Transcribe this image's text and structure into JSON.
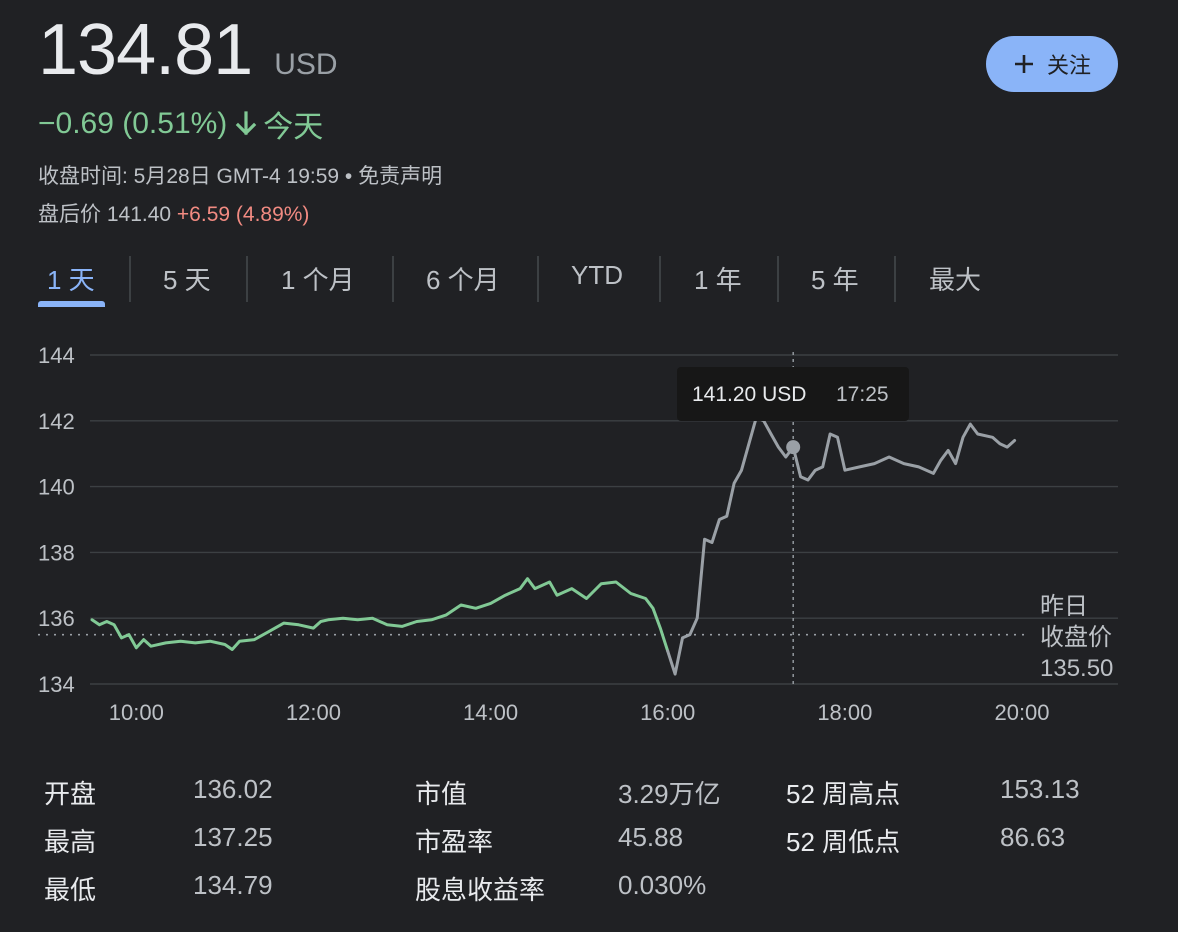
{
  "quote": {
    "price": "134.81",
    "currency": "USD",
    "change": "−0.69 (0.51%)",
    "change_period": "今天",
    "close_time_text": "收盘时间: 5月28日 GMT-4 19:59 • 免责声明",
    "after_hours_label": "盘后价",
    "after_hours_price": "141.40",
    "after_hours_change": "+6.59 (4.89%)"
  },
  "follow_button": {
    "label": "关注",
    "icon": "plus-icon"
  },
  "tabs": [
    "1 天",
    "5 天",
    "1 个月",
    "6 个月",
    "YTD",
    "1 年",
    "5 年",
    "最大"
  ],
  "active_tab": 0,
  "colors": {
    "background": "#202124",
    "regular_line": "#81c995",
    "after_hours_line": "#9aa0a6",
    "accent": "#8ab4f8",
    "negative": "#81c995",
    "positive": "#f28b82"
  },
  "tooltip": {
    "price": "141.20 USD",
    "time": "17:25"
  },
  "prev_close": {
    "label_line1": "昨日",
    "label_line2": "收盘价",
    "value": "135.50"
  },
  "chart_data": {
    "type": "line",
    "title": "",
    "xlabel": "",
    "ylabel": "",
    "ylim": [
      134,
      144
    ],
    "y_ticks": [
      "144",
      "142",
      "140",
      "138",
      "136",
      "134"
    ],
    "x_ticks": [
      "10:00",
      "12:00",
      "14:00",
      "16:00",
      "18:00",
      "20:00"
    ],
    "reference_line": 135.5,
    "hover_point": {
      "time": "17:25",
      "value": 141.2
    },
    "series": [
      {
        "segment": "regular",
        "points": [
          [
            "09:30",
            135.95
          ],
          [
            "09:35",
            135.8
          ],
          [
            "09:40",
            135.9
          ],
          [
            "09:45",
            135.8
          ],
          [
            "09:50",
            135.4
          ],
          [
            "09:55",
            135.5
          ],
          [
            "10:00",
            135.1
          ],
          [
            "10:05",
            135.35
          ],
          [
            "10:10",
            135.15
          ],
          [
            "10:20",
            135.25
          ],
          [
            "10:30",
            135.3
          ],
          [
            "10:40",
            135.25
          ],
          [
            "10:50",
            135.3
          ],
          [
            "11:00",
            135.2
          ],
          [
            "11:05",
            135.05
          ],
          [
            "11:10",
            135.3
          ],
          [
            "11:20",
            135.35
          ],
          [
            "11:30",
            135.6
          ],
          [
            "11:40",
            135.85
          ],
          [
            "11:50",
            135.8
          ],
          [
            "12:00",
            135.7
          ],
          [
            "12:05",
            135.9
          ],
          [
            "12:10",
            135.95
          ],
          [
            "12:20",
            136.0
          ],
          [
            "12:30",
            135.95
          ],
          [
            "12:40",
            136.0
          ],
          [
            "12:50",
            135.8
          ],
          [
            "13:00",
            135.75
          ],
          [
            "13:10",
            135.9
          ],
          [
            "13:20",
            135.95
          ],
          [
            "13:30",
            136.1
          ],
          [
            "13:40",
            136.4
          ],
          [
            "13:50",
            136.3
          ],
          [
            "14:00",
            136.45
          ],
          [
            "14:10",
            136.7
          ],
          [
            "14:20",
            136.9
          ],
          [
            "14:25",
            137.2
          ],
          [
            "14:30",
            136.9
          ],
          [
            "14:40",
            137.1
          ],
          [
            "14:45",
            136.7
          ],
          [
            "14:55",
            136.9
          ],
          [
            "15:05",
            136.6
          ],
          [
            "15:15",
            137.05
          ],
          [
            "15:25",
            137.1
          ],
          [
            "15:35",
            136.75
          ],
          [
            "15:45",
            136.6
          ],
          [
            "15:50",
            136.3
          ],
          [
            "15:55",
            135.7
          ],
          [
            "16:00",
            135.0
          ]
        ]
      },
      {
        "segment": "after_hours",
        "points": [
          [
            "16:00",
            135.0
          ],
          [
            "16:05",
            134.3
          ],
          [
            "16:10",
            135.4
          ],
          [
            "16:15",
            135.5
          ],
          [
            "16:20",
            136.0
          ],
          [
            "16:25",
            138.4
          ],
          [
            "16:30",
            138.3
          ],
          [
            "16:35",
            139.0
          ],
          [
            "16:40",
            139.1
          ],
          [
            "16:45",
            140.1
          ],
          [
            "16:50",
            140.5
          ],
          [
            "16:55",
            141.3
          ],
          [
            "17:00",
            142.1
          ],
          [
            "17:05",
            142.0
          ],
          [
            "17:10",
            141.6
          ],
          [
            "17:15",
            141.2
          ],
          [
            "17:20",
            140.9
          ],
          [
            "17:25",
            141.2
          ],
          [
            "17:30",
            140.3
          ],
          [
            "17:35",
            140.2
          ],
          [
            "17:40",
            140.5
          ],
          [
            "17:45",
            140.6
          ],
          [
            "17:50",
            141.6
          ],
          [
            "17:55",
            141.5
          ],
          [
            "18:00",
            140.5
          ],
          [
            "18:10",
            140.6
          ],
          [
            "18:20",
            140.7
          ],
          [
            "18:30",
            140.9
          ],
          [
            "18:40",
            140.7
          ],
          [
            "18:50",
            140.6
          ],
          [
            "19:00",
            140.4
          ],
          [
            "19:05",
            140.8
          ],
          [
            "19:10",
            141.1
          ],
          [
            "19:15",
            140.7
          ],
          [
            "19:20",
            141.5
          ],
          [
            "19:25",
            141.9
          ],
          [
            "19:30",
            141.6
          ],
          [
            "19:40",
            141.5
          ],
          [
            "19:45",
            141.3
          ],
          [
            "19:50",
            141.2
          ],
          [
            "19:55",
            141.4
          ]
        ]
      }
    ]
  },
  "stats": [
    {
      "label": "开盘",
      "value": "136.02"
    },
    {
      "label": "最高",
      "value": "137.25"
    },
    {
      "label": "最低",
      "value": "134.79"
    },
    {
      "label": "市值",
      "value": "3.29万亿"
    },
    {
      "label": "市盈率",
      "value": "45.88"
    },
    {
      "label": "股息收益率",
      "value": "0.030%"
    },
    {
      "label": "52 周高点",
      "value": "153.13"
    },
    {
      "label": "52 周低点",
      "value": "86.63"
    }
  ]
}
